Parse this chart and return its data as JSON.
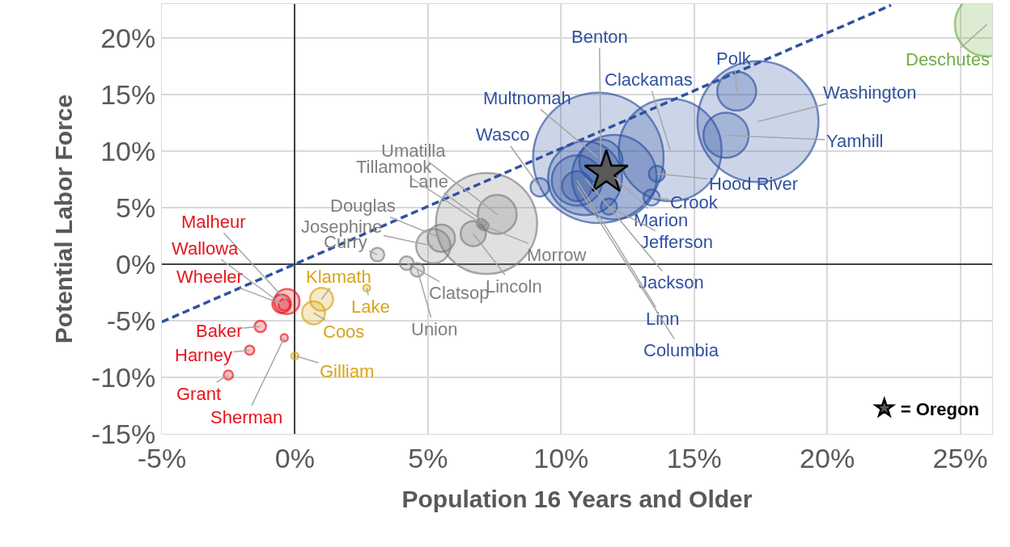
{
  "chart_data": {
    "type": "bubble",
    "xlabel": "Population 16 Years and Older",
    "ylabel": "Potential Labor Force",
    "xlim": [
      -5,
      26.2
    ],
    "ylim": [
      -15,
      23
    ],
    "xticks": [
      {
        "value": -5,
        "label": "-5%"
      },
      {
        "value": 0,
        "label": "0%"
      },
      {
        "value": 5,
        "label": "5%"
      },
      {
        "value": 10,
        "label": "10%"
      },
      {
        "value": 15,
        "label": "15%"
      },
      {
        "value": 20,
        "label": "20%"
      },
      {
        "value": 25,
        "label": "25%"
      }
    ],
    "yticks": [
      {
        "value": -15,
        "label": "-15%"
      },
      {
        "value": -10,
        "label": "-10%"
      },
      {
        "value": -5,
        "label": "-5%"
      },
      {
        "value": 0,
        "label": "0%"
      },
      {
        "value": 5,
        "label": "5%"
      },
      {
        "value": 10,
        "label": "10%"
      },
      {
        "value": 15,
        "label": "15%"
      },
      {
        "value": 20,
        "label": "20%"
      }
    ],
    "grid": true,
    "legend": "bottom right",
    "series": [
      {
        "color": "#e8141c",
        "marker": "circle",
        "x": [
          -0.3,
          -0.5,
          -0.4,
          -1.3,
          -1.7,
          -2.5,
          -0.4
        ],
        "values": [
          -3.3,
          -3.5,
          -3.6,
          -5.5,
          -7.6,
          -9.8,
          -6.5
        ],
        "sizes": [
          0.037,
          0.02,
          0.0077,
          0.0077,
          0.005,
          0.005,
          0.003
        ]
      },
      {
        "color": "#d9a514",
        "marker": "circle",
        "x": [
          1.0,
          0.7,
          2.7,
          0.0
        ],
        "values": [
          -3.1,
          -4.3,
          -2.1,
          -8.1
        ],
        "sizes": [
          0.031,
          0.031,
          0.0028,
          0.003
        ]
      },
      {
        "color": "#7f7f7f",
        "marker": "circle",
        "x": [
          3.1,
          5.2,
          5.5,
          4.2,
          4.6,
          7.2,
          7.6,
          7.0,
          6.7,
          7.1
        ],
        "values": [
          0.85,
          1.6,
          2.3,
          0.1,
          -0.5,
          3.6,
          4.4,
          3.6,
          2.7,
          3.4
        ],
        "sizes": [
          0.011,
          0.069,
          0.044,
          0.011,
          0.011,
          0.6,
          0.089,
          0.005,
          0.037,
          0.005
        ]
      },
      {
        "color": "#2f52a0",
        "marker": "circle",
        "x": [
          9.2,
          11.4,
          11.5,
          14.1,
          16.6,
          17.4,
          16.2,
          13.6,
          13.4,
          12.0,
          11.8,
          10.9,
          10.6,
          10.6
        ],
        "values": [
          6.8,
          9.4,
          9.1,
          10.1,
          15.3,
          12.6,
          11.4,
          8.0,
          5.9,
          7.7,
          5.1,
          7.6,
          7.4,
          6.9
        ],
        "sizes": [
          0.02,
          1,
          0.11,
          0.62,
          0.089,
          0.86,
          0.12,
          0.015,
          0.015,
          0.42,
          0.015,
          0.32,
          0.15,
          0.052
        ]
      },
      {
        "color": "#70ad47",
        "marker": "circle",
        "x": [
          26.0
        ],
        "values": [
          21.2
        ],
        "sizes": [
          0.24
        ]
      },
      {
        "type": "line",
        "color": "#2f52a0",
        "line_style": "dashed",
        "x": [
          -5,
          22.4
        ],
        "values": [
          -5.1,
          22.9
        ]
      },
      {
        "type": "scatter",
        "name": "= Oregon",
        "color": "#595959",
        "marker": "star",
        "x": [
          11.7
        ],
        "values": [
          8.1
        ]
      }
    ],
    "annotations": [
      {
        "text": "Malheur",
        "x": -0.3,
        "y": -3.3
      },
      {
        "text": "Wallowa",
        "x": -0.5,
        "y": -3.5
      },
      {
        "text": "Wheeler",
        "x": -0.4,
        "y": -3.6
      },
      {
        "text": "Baker",
        "x": -1.3,
        "y": -5.5
      },
      {
        "text": "Harney",
        "x": -1.7,
        "y": -7.6
      },
      {
        "text": "Grant",
        "x": -2.5,
        "y": -9.8
      },
      {
        "text": "Sherman",
        "x": -0.4,
        "y": -6.5
      },
      {
        "text": "Klamath",
        "x": 1.0,
        "y": -3.1
      },
      {
        "text": "Coos",
        "x": 0.7,
        "y": -4.3
      },
      {
        "text": "Lake",
        "x": 2.7,
        "y": -2.1
      },
      {
        "text": "Gilliam",
        "x": 0.0,
        "y": -8.1
      },
      {
        "text": "Curry",
        "x": 3.1,
        "y": 0.85
      },
      {
        "text": "Josephine",
        "x": 5.2,
        "y": 1.6
      },
      {
        "text": "Douglas",
        "x": 5.5,
        "y": 2.3
      },
      {
        "text": "Clatsop",
        "x": 4.2,
        "y": 0.1
      },
      {
        "text": "Union",
        "x": 4.6,
        "y": -0.5
      },
      {
        "text": "Lane",
        "x": 7.2,
        "y": 3.6
      },
      {
        "text": "Umatilla",
        "x": 7.6,
        "y": 4.4
      },
      {
        "text": "Tillamook",
        "x": 7.0,
        "y": 3.6
      },
      {
        "text": "Lincoln",
        "x": 6.7,
        "y": 2.7
      },
      {
        "text": "Morrow",
        "x": 7.1,
        "y": 3.4
      },
      {
        "text": "Wasco",
        "x": 9.2,
        "y": 6.8
      },
      {
        "text": "Multnomah",
        "x": 11.4,
        "y": 9.4
      },
      {
        "text": "Benton",
        "x": 11.5,
        "y": 9.1
      },
      {
        "text": "Clackamas",
        "x": 14.1,
        "y": 10.1
      },
      {
        "text": "Polk",
        "x": 16.6,
        "y": 15.3
      },
      {
        "text": "Washington",
        "x": 17.4,
        "y": 12.6
      },
      {
        "text": "Yamhill",
        "x": 16.2,
        "y": 11.4
      },
      {
        "text": "Hood River",
        "x": 13.6,
        "y": 8.0
      },
      {
        "text": "Crook",
        "x": 13.4,
        "y": 5.9
      },
      {
        "text": "Marion",
        "x": 12.0,
        "y": 7.7
      },
      {
        "text": "Jefferson",
        "x": 11.8,
        "y": 5.1
      },
      {
        "text": "Jackson",
        "x": 10.9,
        "y": 7.6
      },
      {
        "text": "Linn",
        "x": 10.6,
        "y": 7.4
      },
      {
        "text": "Columbia",
        "x": 10.6,
        "y": 6.9
      },
      {
        "text": "Deschutes",
        "x": 26.0,
        "y": 21.2
      }
    ]
  }
}
